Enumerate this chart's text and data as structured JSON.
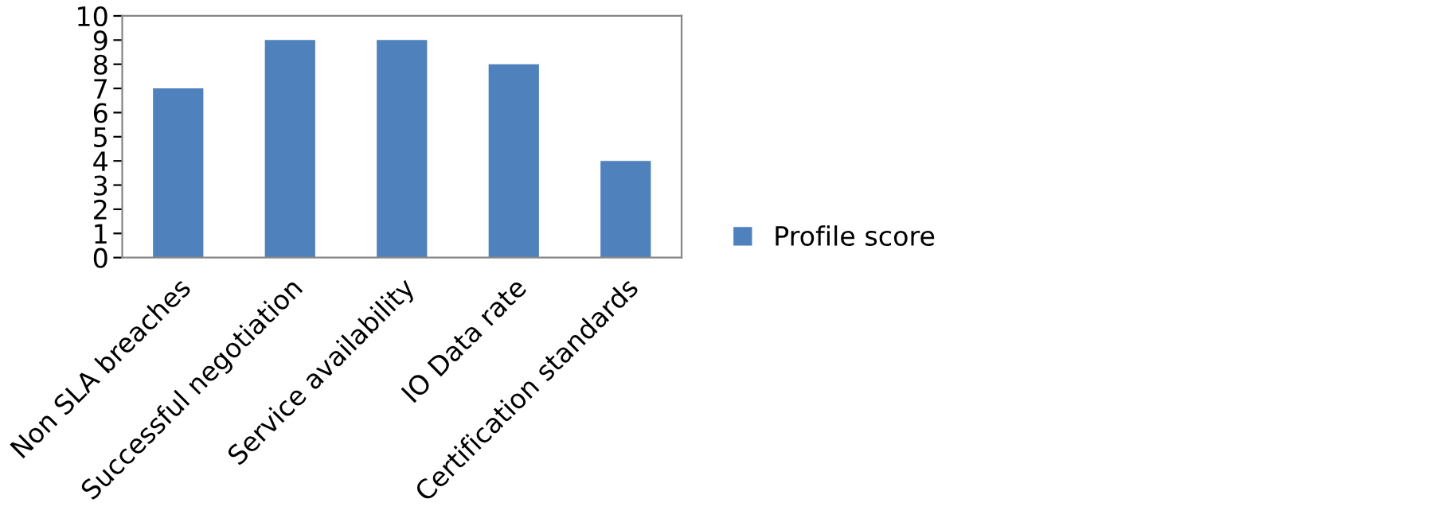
{
  "chart_data": {
    "type": "bar",
    "categories": [
      "Non SLA breaches",
      "Successful negotiation",
      "Service availability",
      "IO Data rate",
      "Certification standards"
    ],
    "series": [
      {
        "name": "Profile score",
        "color": "#4f81bd",
        "values": [
          7,
          9,
          9,
          8,
          4
        ]
      }
    ],
    "ylim": [
      0,
      10
    ],
    "yticks": [
      0,
      1,
      2,
      3,
      4,
      5,
      6,
      7,
      8,
      9,
      10
    ],
    "grid": false,
    "legend": "right"
  }
}
